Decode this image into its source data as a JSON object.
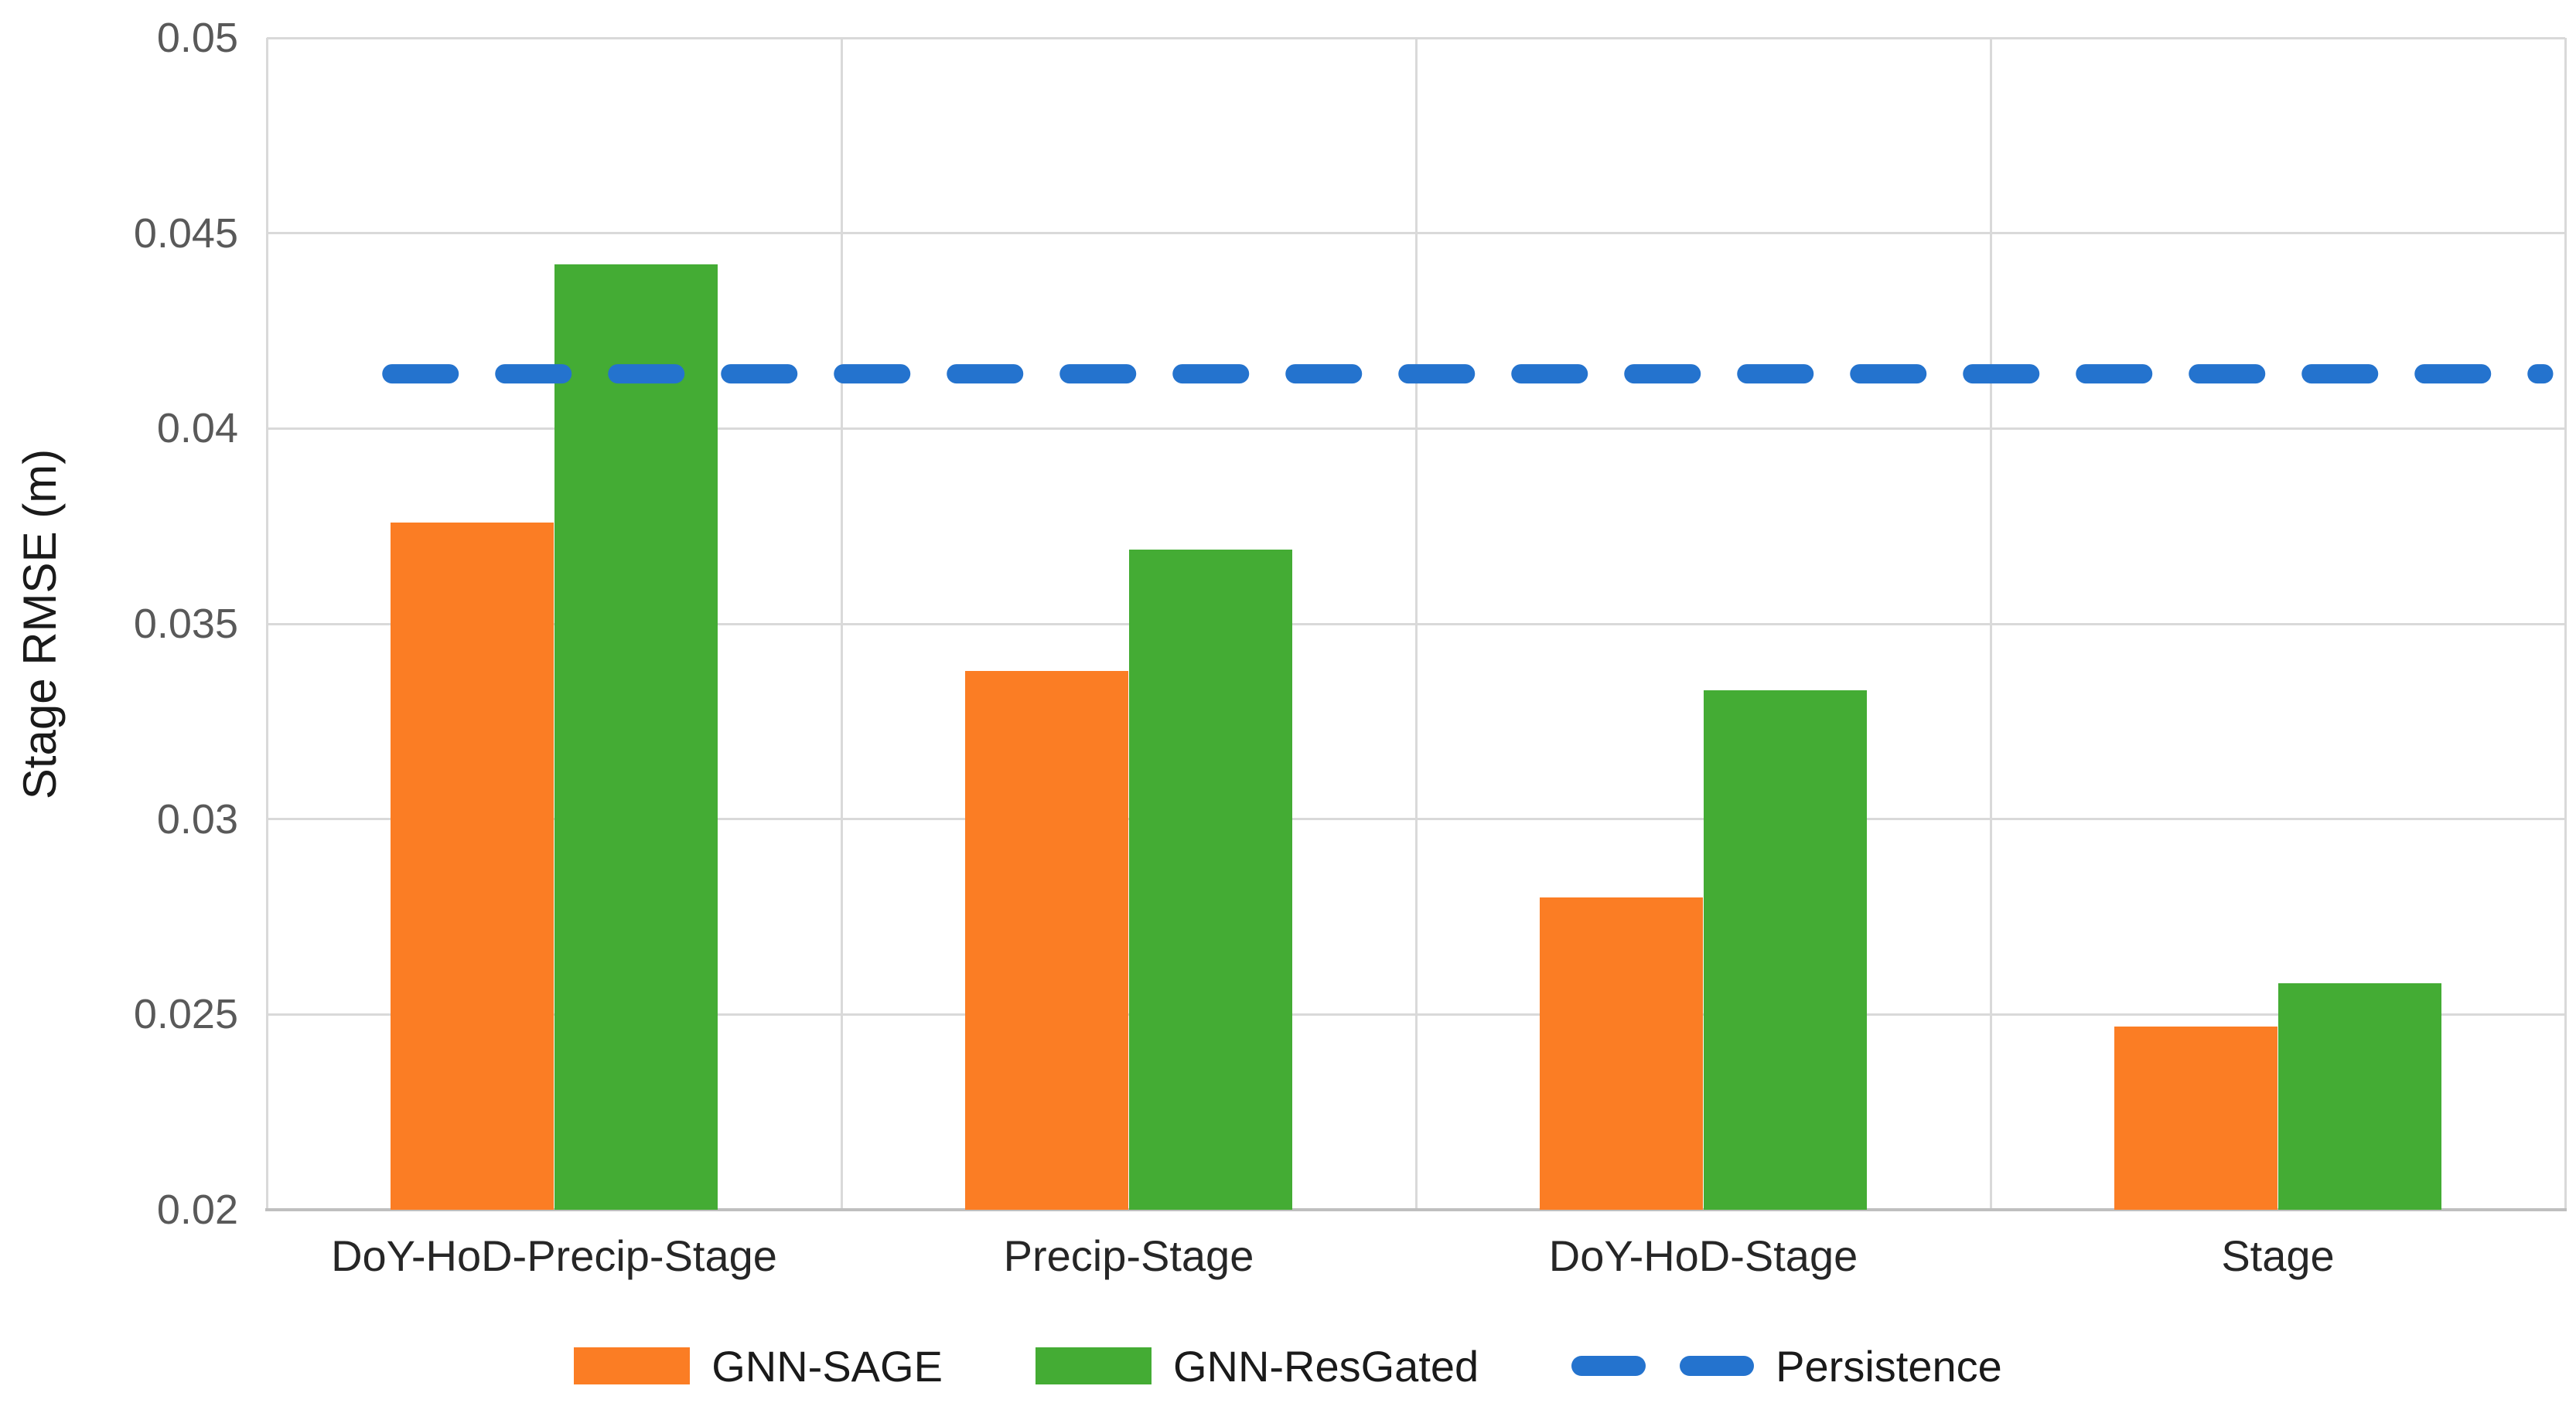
{
  "chart_data": {
    "type": "bar",
    "title": "",
    "xlabel": "",
    "ylabel": "Stage RMSE (m)",
    "categories": [
      "DoY-HoD-Precip-Stage",
      "Precip-Stage",
      "DoY-HoD-Stage",
      "Stage"
    ],
    "series": [
      {
        "name": "GNN-SAGE",
        "color": "#FB7D24",
        "values": [
          0.0376,
          0.0338,
          0.028,
          0.0247
        ]
      },
      {
        "name": "GNN-ResGated",
        "color": "#44AC34",
        "values": [
          0.0442,
          0.0369,
          0.0333,
          0.0258
        ]
      }
    ],
    "reference_line": {
      "name": "Persistence",
      "color": "#2473CE",
      "style": "dashed",
      "value": 0.0414
    },
    "ylim": [
      0.02,
      0.05
    ],
    "ytick_step": 0.005,
    "ytick_labels": [
      "0.05",
      "0.045",
      "0.04",
      "0.035",
      "0.03",
      "0.025",
      "0.02"
    ],
    "grid": true,
    "legend_position": "bottom",
    "colors": {
      "gridline": "#d9d9d9",
      "axis_line": "#bfbfbf",
      "tick_text": "#595959",
      "label_text": "#262626"
    }
  }
}
